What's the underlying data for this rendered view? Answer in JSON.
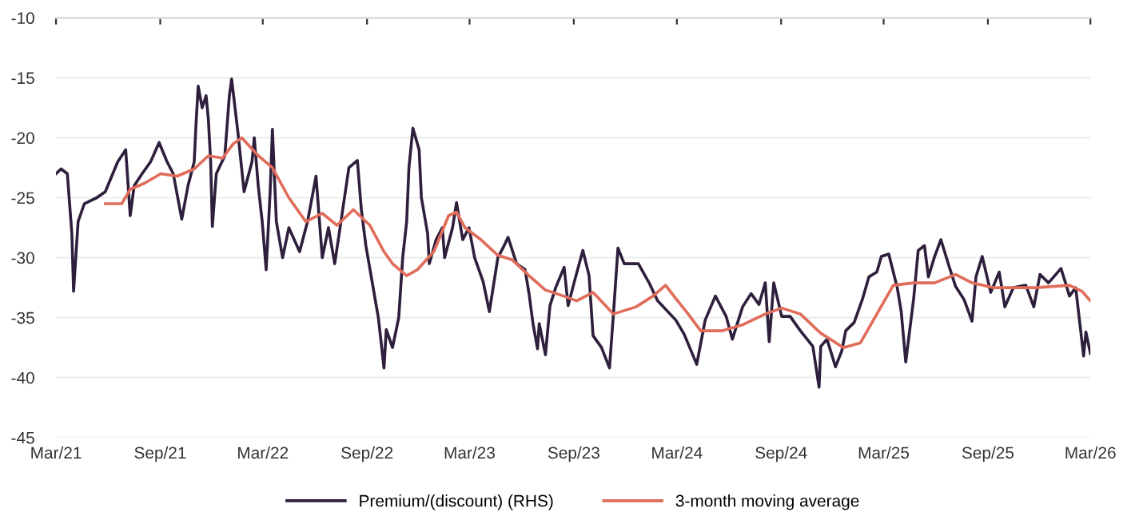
{
  "chart_data": {
    "type": "line",
    "xlim": [
      "2021-03-01",
      "2026-03-01"
    ],
    "ylim": [
      -45,
      -10
    ],
    "xticks": [
      {
        "value": "2021-03-01",
        "label": "Mar/21"
      },
      {
        "value": "2021-09-01",
        "label": "Sep/21"
      },
      {
        "value": "2022-03-01",
        "label": "Mar/22"
      },
      {
        "value": "2022-09-01",
        "label": "Sep/22"
      },
      {
        "value": "2023-03-01",
        "label": "Mar/23"
      },
      {
        "value": "2023-09-01",
        "label": "Sep/23"
      },
      {
        "value": "2024-03-01",
        "label": "Mar/24"
      },
      {
        "value": "2024-09-01",
        "label": "Sep/24"
      },
      {
        "value": "2025-03-01",
        "label": "Mar/25"
      },
      {
        "value": "2025-09-01",
        "label": "Sep/25"
      },
      {
        "value": "2026-03-01",
        "label": "Mar/26"
      }
    ],
    "yticks": [
      -45,
      -40,
      -35,
      -30,
      -25,
      -20,
      -15,
      -10
    ],
    "grid": "y",
    "legend": "bottom",
    "marker": "none",
    "line_style": "solid",
    "series": [
      {
        "name": "Premium/(discount) (RHS)",
        "color": "#2e1f3c",
        "x": [
          "2021-03-01",
          "2021-03-10",
          "2021-03-21",
          "2021-03-29",
          "2021-04-01",
          "2021-04-09",
          "2021-04-20",
          "2021-05-12",
          "2021-05-27",
          "2021-06-18",
          "2021-07-02",
          "2021-07-10",
          "2021-07-17",
          "2021-07-31",
          "2021-08-15",
          "2021-08-30",
          "2021-09-13",
          "2021-09-24",
          "2021-10-09",
          "2021-10-20",
          "2021-10-31",
          "2021-11-03",
          "2021-11-07",
          "2021-11-14",
          "2021-11-21",
          "2021-11-25",
          "2021-11-29",
          "2021-12-02",
          "2021-12-09",
          "2021-12-24",
          "2022-01-01",
          "2022-01-05",
          "2022-01-16",
          "2022-01-27",
          "2022-02-10",
          "2022-02-14",
          "2022-02-21",
          "2022-02-28",
          "2022-03-07",
          "2022-03-14",
          "2022-03-18",
          "2022-03-25",
          "2022-04-05",
          "2022-04-16",
          "2022-05-05",
          "2022-05-19",
          "2022-06-03",
          "2022-06-14",
          "2022-06-25",
          "2022-07-06",
          "2022-07-17",
          "2022-07-31",
          "2022-08-15",
          "2022-08-22",
          "2022-08-30",
          "2022-09-10",
          "2022-09-21",
          "2022-10-01",
          "2022-10-05",
          "2022-10-16",
          "2022-10-27",
          "2022-11-03",
          "2022-11-10",
          "2022-11-14",
          "2022-11-21",
          "2022-12-02",
          "2022-12-06",
          "2022-12-17",
          "2022-12-20",
          "2023-01-01",
          "2023-01-12",
          "2023-01-16",
          "2023-01-30",
          "2023-02-06",
          "2023-02-17",
          "2023-02-28",
          "2023-03-10",
          "2023-03-25",
          "2023-04-05",
          "2023-04-20",
          "2023-05-01",
          "2023-05-08",
          "2023-05-23",
          "2023-06-07",
          "2023-06-14",
          "2023-06-21",
          "2023-06-29",
          "2023-07-02",
          "2023-07-13",
          "2023-07-21",
          "2023-07-31",
          "2023-08-15",
          "2023-08-22",
          "2023-09-02",
          "2023-09-17",
          "2023-09-28",
          "2023-10-05",
          "2023-10-20",
          "2023-11-03",
          "2023-11-10",
          "2023-11-18",
          "2023-11-29",
          "2023-12-24",
          "2024-01-12",
          "2024-01-27",
          "2024-02-28",
          "2024-03-14",
          "2024-04-05",
          "2024-04-20",
          "2024-05-08",
          "2024-05-27",
          "2024-06-07",
          "2024-06-25",
          "2024-07-10",
          "2024-07-24",
          "2024-08-04",
          "2024-08-11",
          "2024-08-19",
          "2024-09-02",
          "2024-09-17",
          "2024-10-05",
          "2024-10-27",
          "2024-11-07",
          "2024-11-10",
          "2024-11-21",
          "2024-12-06",
          "2024-12-17",
          "2024-12-24",
          "2025-01-08",
          "2025-01-23",
          "2025-02-03",
          "2025-02-17",
          "2025-02-25",
          "2025-03-10",
          "2025-03-25",
          "2025-04-01",
          "2025-04-09",
          "2025-04-23",
          "2025-05-01",
          "2025-05-12",
          "2025-05-19",
          "2025-05-30",
          "2025-06-10",
          "2025-06-25",
          "2025-07-06",
          "2025-07-21",
          "2025-08-04",
          "2025-08-11",
          "2025-08-22",
          "2025-09-06",
          "2025-09-21",
          "2025-10-01",
          "2025-10-16",
          "2025-11-07",
          "2025-11-21",
          "2025-12-02",
          "2025-12-17",
          "2026-01-08",
          "2026-01-16",
          "2026-01-23",
          "2026-02-03",
          "2026-02-17",
          "2026-02-21",
          "2026-03-01"
        ],
        "values": [
          -23,
          -22.6,
          -23,
          -28,
          -32.8,
          -27,
          -25.5,
          -25,
          -24.5,
          -22,
          -21,
          -26.5,
          -24,
          -23,
          -22,
          -20.4,
          -22,
          -23,
          -26.8,
          -24,
          -22,
          -19,
          -15.7,
          -17.5,
          -16.5,
          -18.5,
          -22,
          -27.4,
          -23,
          -21.5,
          -16.5,
          -15.1,
          -19.5,
          -24.5,
          -22,
          -20,
          -24,
          -27,
          -31,
          -24.5,
          -19.3,
          -27,
          -30,
          -27.5,
          -29.5,
          -27,
          -23.2,
          -30,
          -27.5,
          -30.5,
          -27,
          -22.5,
          -21.9,
          -26,
          -29,
          -32,
          -35,
          -39.2,
          -36,
          -37.5,
          -35,
          -30,
          -27,
          -22.5,
          -19.2,
          -21,
          -25,
          -28,
          -30.5,
          -28.5,
          -27.5,
          -30,
          -27.5,
          -25.4,
          -28.5,
          -27.5,
          -30,
          -32,
          -34.5,
          -30,
          -29,
          -28.3,
          -30.5,
          -31,
          -33,
          -35.5,
          -37.6,
          -35.5,
          -38.1,
          -34,
          -32.5,
          -30.8,
          -34,
          -32,
          -29.4,
          -31.5,
          -36.5,
          -37.5,
          -39.2,
          -34.7,
          -29.2,
          -30.5,
          -30.5,
          -32.1,
          -33.6,
          -35.2,
          -36.4,
          -38.9,
          -35.2,
          -33.2,
          -34.9,
          -36.8,
          -34.1,
          -33,
          -33.9,
          -32.1,
          -37,
          -32.1,
          -34.9,
          -34.9,
          -36.1,
          -37.4,
          -40.8,
          -37.4,
          -36.8,
          -39.1,
          -37.8,
          -36.1,
          -35.4,
          -33.4,
          -31.6,
          -31.2,
          -29.9,
          -29.7,
          -32.5,
          -34.5,
          -38.7,
          -33.4,
          -29.4,
          -29,
          -31.6,
          -29.9,
          -28.5,
          -30.8,
          -32.4,
          -33.5,
          -35.3,
          -31.6,
          -29.9,
          -32.9,
          -31.2,
          -34.1,
          -32.5,
          -32.3,
          -34.1,
          -31.4,
          -32.1,
          -30.9,
          -32.1,
          -33.2,
          -32.5,
          -38.2,
          -36.2,
          -38
        ]
      },
      {
        "name": "3-month moving average",
        "color": "#e06c5a",
        "x": [
          "2021-05-27",
          "2021-06-25",
          "2021-07-10",
          "2021-08-04",
          "2021-09-02",
          "2021-10-01",
          "2021-10-31",
          "2021-11-25",
          "2021-12-20",
          "2022-01-08",
          "2022-01-23",
          "2022-02-21",
          "2022-03-18",
          "2022-04-16",
          "2022-05-16",
          "2022-06-14",
          "2022-07-10",
          "2022-08-08",
          "2022-09-06",
          "2022-10-01",
          "2022-10-16",
          "2022-11-10",
          "2022-11-29",
          "2022-12-28",
          "2023-01-23",
          "2023-02-06",
          "2023-02-21",
          "2023-03-21",
          "2023-04-20",
          "2023-05-16",
          "2023-06-14",
          "2023-07-13",
          "2023-08-08",
          "2023-09-06",
          "2023-10-05",
          "2023-11-10",
          "2023-12-20",
          "2024-01-19",
          "2024-02-10",
          "2024-02-28",
          "2024-03-21",
          "2024-04-12",
          "2024-05-19",
          "2024-06-25",
          "2024-08-04",
          "2024-09-02",
          "2024-10-05",
          "2024-11-10",
          "2024-12-20",
          "2025-01-19",
          "2025-02-17",
          "2025-03-18",
          "2025-04-23",
          "2025-05-30",
          "2025-07-06",
          "2025-08-04",
          "2025-09-10",
          "2025-11-25",
          "2026-01-23",
          "2026-02-14",
          "2026-03-01"
        ],
        "values": [
          -25.5,
          -25.5,
          -24.3,
          -23.8,
          -23,
          -23.2,
          -22.6,
          -21.5,
          -21.7,
          -20.5,
          -20,
          -21.5,
          -22.5,
          -25,
          -27,
          -26.3,
          -27.3,
          -26,
          -27.3,
          -29.5,
          -30.5,
          -31.5,
          -31,
          -29.5,
          -26.5,
          -26.2,
          -27.5,
          -28.5,
          -29.8,
          -30.2,
          -31.5,
          -32.7,
          -33.1,
          -33.6,
          -32.9,
          -34.7,
          -34.1,
          -33.2,
          -32.3,
          -33.4,
          -34.7,
          -36.1,
          -36.1,
          -35.6,
          -34.7,
          -34.2,
          -34.7,
          -36.3,
          -37.5,
          -37.1,
          -34.7,
          -32.3,
          -32.1,
          -32.1,
          -31.4,
          -32.1,
          -32.5,
          -32.5,
          -32.3,
          -32.8,
          -33.6
        ]
      }
    ]
  }
}
